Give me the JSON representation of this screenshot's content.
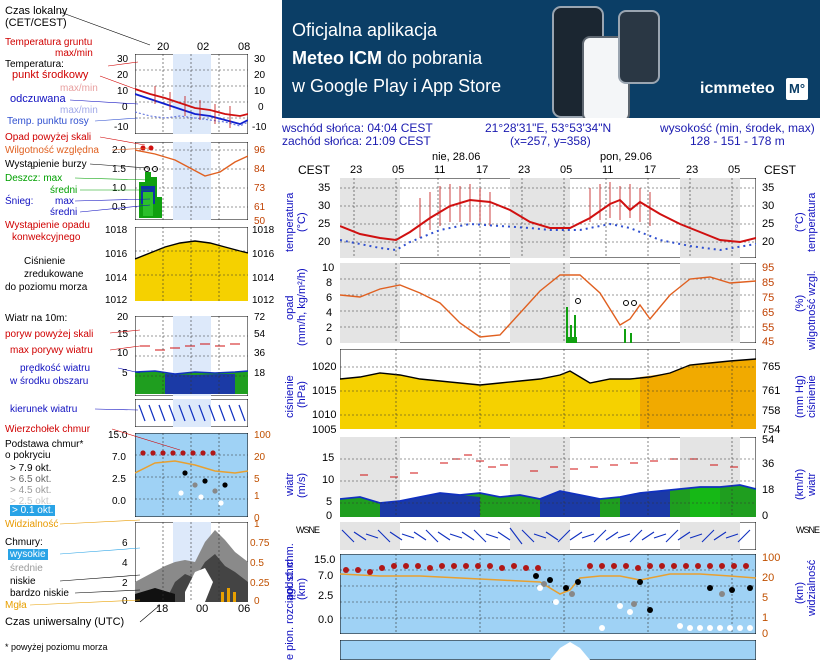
{
  "legend": {
    "timezone_label": "Czas lokalny",
    "timezone_sub": "(CET/CEST)",
    "top_hours": [
      "20",
      "02",
      "08"
    ],
    "soil_temp": "Temperatura gruntu",
    "soil_temp_sub": "max/min",
    "temperature": "Temperatura:",
    "mid_point": "punkt środkowy",
    "max_min_1": "max/min",
    "apparent": "odczuwana",
    "max_min_2": "max/min",
    "dew_point": "Temp. punktu rosy",
    "temp_ticks": [
      "30",
      "20",
      "10",
      "0",
      "-10"
    ],
    "precip_over_scale": "Opad powyżej skali",
    "humidity": "Wilgotność względna",
    "storm": "Wystąpienie burzy",
    "rain": "Deszcz: max",
    "rain_mean": "średni",
    "snow": "Śnieg:",
    "snow_max": "max",
    "snow_mean": "średni",
    "convective": "Wystąpienie opadu",
    "convective2": "konwekcyjnego",
    "precip_ticks": [
      "2.0",
      "1.5",
      "1.0",
      "0.5"
    ],
    "humidity_ticks": [
      "96",
      "84",
      "73",
      "61",
      "50"
    ],
    "pressure_ticks": [
      "1018",
      "1016",
      "1014",
      "1012"
    ],
    "pressure": "Ciśnienie",
    "pressure2": "zredukowane",
    "pressure3": "do poziomu morza",
    "wind": "Wiatr na 10m:",
    "gust_over": "poryw powyżej skali",
    "gust_max": "max porywy wiatru",
    "wind_ticks": [
      "20",
      "15",
      "10",
      "5"
    ],
    "wind_kmh_ticks": [
      "72",
      "54",
      "36",
      "18"
    ],
    "wind_speed": "prędkość wiatru",
    "wind_area": "w środku obszaru",
    "wind_dir": "kierunek wiatru",
    "cloud_top": "Wierzchołek chmur",
    "cloud_base": "Podstawa chmur*",
    "cloud_base2": "o pokryciu",
    "okt_1": "> 7.9 okt.",
    "okt_2": "> 6.5 okt.",
    "okt_3": "> 4.5 okt.",
    "okt_4": "> 2.5 okt.",
    "okt_5": "> 0.1 okt.",
    "visibility": "Widzialność",
    "cb_ticks": [
      "15.0",
      "7.0",
      "2.5",
      "0.0"
    ],
    "vis_ticks": [
      "100",
      "20",
      "5",
      "1",
      "0"
    ],
    "clouds": "Chmury:",
    "high": "wysokie",
    "medium": "średnie",
    "low": "niskie",
    "very_low": "bardzo niskie",
    "fog": "Mgła",
    "cloud_ticks": [
      "6",
      "4",
      "2",
      "0"
    ],
    "cloud_frac_ticks": [
      "1",
      "0.75",
      "0.5",
      "0.25",
      "0"
    ],
    "utc_hours": [
      "18",
      "00",
      "06"
    ],
    "utc": "Czas uniwersalny (UTC)",
    "footnote": "* powyżej poziomu morza"
  },
  "banner": {
    "line1": "Oficjalna aplikacja",
    "line2_bold": "Meteo ICM",
    "line2_rest": " do pobrania",
    "line3": "w Google Play i App Store",
    "logo": "icmmeteo",
    "logo_mark": "M°"
  },
  "location": {
    "sunrise": "wschód słońca: 04:04 CEST",
    "sunset": "zachód słońca: 21:09 CEST",
    "coords": "21°28'31\"E, 53°53'34\"N",
    "grid": "(x=257, y=358)",
    "elev_label": "wysokość (min, środek, max)",
    "elev_values": "128 - 151 - 178 m"
  },
  "meteogram": {
    "day1": "nie, 28.06",
    "day2": "pon, 29.06",
    "tz": "CEST",
    "hours": [
      "23",
      "05",
      "11",
      "17",
      "23",
      "05",
      "11",
      "17",
      "23",
      "05"
    ],
    "temp_ticks": [
      "35",
      "30",
      "25",
      "20"
    ],
    "temp_left": "temperatura",
    "temp_unit": "(°C)",
    "temp_right": "temperatura",
    "precip_ticks": [
      "10",
      "8",
      "6",
      "4",
      "2",
      "0"
    ],
    "precip_left": "opad",
    "precip_unit": "(mm/h, kg/m²/h)",
    "hum_ticks": [
      "95",
      "85",
      "75",
      "65",
      "55",
      "45"
    ],
    "hum_unit": "(%)",
    "hum_right": "wilgotność wzgl.",
    "press_ticks": [
      "1020",
      "1015",
      "1010",
      "1005"
    ],
    "press_left": "ciśnienie",
    "press_unit": "(hPa)",
    "press_mm_ticks": [
      "765",
      "761",
      "758",
      "754"
    ],
    "press_mm_unit": "(mm Hg)",
    "press_right": "ciśnienie",
    "wind_ticks": [
      "15",
      "10",
      "5",
      "0"
    ],
    "wind_left": "wiatr",
    "wind_unit": "(m/s)",
    "wind_kmh_ticks": [
      "54",
      "36",
      "18",
      "0"
    ],
    "wind_kmh_unit": "(km/h)",
    "wind_right": "wiatr",
    "compass": "WSNE",
    "cb_ticks": [
      "15.0",
      "7.0",
      "2.5",
      "0.0"
    ],
    "cb_left": "podst. chm.",
    "cb_left2": "e pion. rozciągł. chm",
    "cb_unit": "(km)",
    "vis_ticks": [
      "100",
      "20",
      "5",
      "1",
      "0"
    ],
    "vis_unit": "(km)",
    "vis_right": "widzialność"
  },
  "colors": {
    "banner": "#0b3e66",
    "temp_line": "#d01010",
    "pressure_fill": "#f5d100",
    "humidity_line": "#e06020",
    "wind_green": "#12a012",
    "wind_blue": "#1030c0"
  }
}
